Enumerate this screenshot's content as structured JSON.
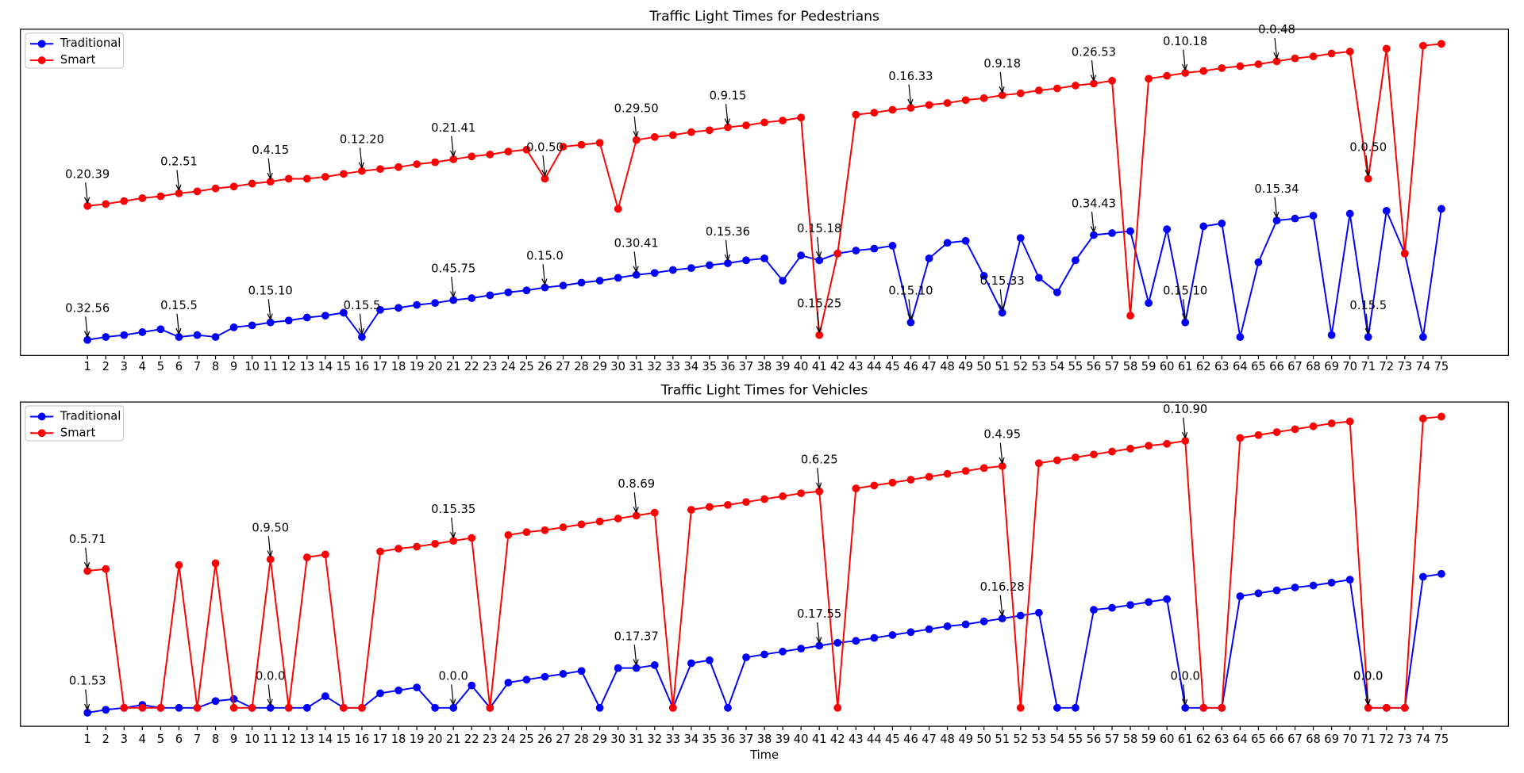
{
  "chart_data": [
    {
      "type": "line",
      "title": "Traffic Light Times for Pedestrians",
      "categories": [
        1,
        2,
        3,
        4,
        5,
        6,
        7,
        8,
        9,
        10,
        11,
        12,
        13,
        14,
        15,
        16,
        17,
        18,
        19,
        20,
        21,
        22,
        23,
        24,
        25,
        26,
        27,
        28,
        29,
        30,
        31,
        32,
        33,
        34,
        35,
        36,
        37,
        38,
        39,
        40,
        41,
        42,
        43,
        44,
        45,
        46,
        47,
        48,
        49,
        50,
        51,
        52,
        53,
        54,
        55,
        56,
        57,
        58,
        59,
        60,
        61,
        62,
        63,
        64,
        65,
        66,
        67,
        68,
        69,
        70,
        71,
        72,
        73,
        74,
        75
      ],
      "ylim": [
        0,
        336
      ],
      "legend": "upper left",
      "grid": false,
      "series": [
        {
          "name": "Traditional",
          "color": "#0000ff",
          "values": [
            16,
            19,
            21,
            24,
            27,
            19,
            21,
            19,
            29,
            31,
            34,
            36,
            39,
            41,
            44,
            19,
            47,
            49,
            52,
            54,
            57,
            59,
            62,
            65,
            67,
            70,
            72,
            75,
            77,
            80,
            83,
            85,
            88,
            90,
            93,
            95,
            98,
            100,
            77,
            103,
            98,
            105,
            108,
            110,
            113,
            34,
            100,
            116,
            118,
            82,
            44,
            121,
            80,
            65,
            98,
            124,
            126,
            128,
            54,
            130,
            34,
            133,
            136,
            19,
            96,
            139,
            141,
            144,
            21,
            146,
            19,
            149,
            105,
            19,
            151
          ],
          "annotations": [
            "0.32.56",
            null,
            null,
            null,
            null,
            "0.15.5",
            null,
            null,
            null,
            null,
            "0.15.10",
            null,
            null,
            null,
            null,
            "0.15.5",
            null,
            null,
            null,
            null,
            "0.45.75",
            null,
            null,
            null,
            null,
            "0.15.0",
            null,
            null,
            null,
            null,
            "0.30.41",
            null,
            null,
            null,
            null,
            "0.15.36",
            null,
            null,
            null,
            null,
            "0.15.18",
            null,
            null,
            null,
            null,
            "0.15.10",
            null,
            null,
            null,
            null,
            "0.15.33",
            null,
            null,
            null,
            null,
            "0.34.43",
            null,
            null,
            null,
            null,
            "0.15.10",
            null,
            null,
            null,
            null,
            "0.15.34",
            null,
            null,
            null,
            null,
            "0.15.5",
            null,
            null,
            null,
            null
          ]
        },
        {
          "name": "Smart",
          "color": "#ff0000",
          "values": [
            154,
            156,
            159,
            162,
            164,
            167,
            169,
            172,
            174,
            177,
            179,
            182,
            182,
            184,
            187,
            190,
            192,
            194,
            197,
            199,
            202,
            205,
            207,
            210,
            212,
            182,
            215,
            217,
            219,
            151,
            222,
            225,
            227,
            230,
            232,
            235,
            237,
            240,
            242,
            245,
            21,
            105,
            248,
            250,
            253,
            255,
            258,
            260,
            263,
            265,
            268,
            270,
            273,
            275,
            278,
            280,
            283,
            41,
            285,
            288,
            291,
            293,
            296,
            298,
            300,
            303,
            306,
            308,
            311,
            313,
            182,
            316,
            105,
            319,
            321
          ],
          "annotations": [
            "0.20.39",
            null,
            null,
            null,
            null,
            "0.2.51",
            null,
            null,
            null,
            null,
            "0.4.15",
            null,
            null,
            null,
            null,
            "0.12.20",
            null,
            null,
            null,
            null,
            "0.21.41",
            null,
            null,
            null,
            null,
            "0.0.50",
            null,
            null,
            null,
            null,
            "0.29.50",
            null,
            null,
            null,
            null,
            "0.9.15",
            null,
            null,
            null,
            null,
            "0.15.25",
            null,
            null,
            null,
            null,
            "0.16.33",
            null,
            null,
            null,
            null,
            "0.9.18",
            null,
            null,
            null,
            null,
            "0.26.53",
            null,
            null,
            null,
            null,
            "0.10.18",
            null,
            null,
            null,
            null,
            "0.0.48",
            null,
            null,
            null,
            null,
            "0.0.50",
            null,
            null,
            null,
            null
          ]
        }
      ]
    },
    {
      "type": "line",
      "title": "Traffic Light Times for Vehicles",
      "x_label": "Time",
      "categories": [
        1,
        2,
        3,
        4,
        5,
        6,
        7,
        8,
        9,
        10,
        11,
        12,
        13,
        14,
        15,
        16,
        17,
        18,
        19,
        20,
        21,
        22,
        23,
        24,
        25,
        26,
        27,
        28,
        29,
        30,
        31,
        32,
        33,
        34,
        35,
        36,
        37,
        38,
        39,
        40,
        41,
        42,
        43,
        44,
        45,
        46,
        47,
        48,
        49,
        50,
        51,
        52,
        53,
        54,
        55,
        56,
        57,
        58,
        59,
        60,
        61,
        62,
        63,
        64,
        65,
        66,
        67,
        68,
        69,
        70,
        71,
        72,
        73,
        74,
        75
      ],
      "ylim": [
        0,
        334
      ],
      "legend": "upper left",
      "grid": false,
      "series": [
        {
          "name": "Traditional",
          "color": "#0000ff",
          "values": [
            14,
            17,
            19,
            22,
            19,
            19,
            19,
            26,
            28,
            19,
            19,
            19,
            19,
            31,
            19,
            19,
            34,
            37,
            40,
            19,
            19,
            42,
            19,
            45,
            48,
            51,
            54,
            57,
            19,
            60,
            60,
            63,
            19,
            65,
            68,
            19,
            71,
            74,
            77,
            80,
            83,
            86,
            88,
            91,
            94,
            97,
            100,
            103,
            105,
            108,
            111,
            114,
            117,
            19,
            19,
            120,
            122,
            125,
            128,
            131,
            19,
            19,
            19,
            134,
            137,
            140,
            143,
            145,
            148,
            151,
            19,
            19,
            19,
            154,
            157
          ],
          "annotations": [
            "0.1.53",
            null,
            null,
            null,
            null,
            null,
            null,
            null,
            null,
            null,
            "0.0.0",
            null,
            null,
            null,
            null,
            null,
            null,
            null,
            null,
            null,
            "0.0.0",
            null,
            null,
            null,
            null,
            null,
            null,
            null,
            null,
            null,
            "0.17.37",
            null,
            null,
            null,
            null,
            null,
            null,
            null,
            null,
            null,
            "0.17.55",
            null,
            null,
            null,
            null,
            null,
            null,
            null,
            null,
            null,
            "0.16.28",
            null,
            null,
            null,
            null,
            null,
            null,
            null,
            null,
            null,
            "0.0.0",
            null,
            null,
            null,
            null,
            null,
            null,
            null,
            null,
            null,
            "0.0.0",
            null,
            null,
            null,
            null
          ]
        },
        {
          "name": "Smart",
          "color": "#ff0000",
          "values": [
            160,
            162,
            19,
            19,
            19,
            166,
            19,
            168,
            19,
            19,
            172,
            19,
            174,
            177,
            19,
            19,
            180,
            183,
            185,
            188,
            191,
            194,
            19,
            197,
            200,
            202,
            205,
            208,
            211,
            214,
            217,
            220,
            19,
            223,
            226,
            228,
            231,
            234,
            237,
            240,
            242,
            19,
            245,
            248,
            251,
            254,
            257,
            260,
            263,
            266,
            268,
            19,
            271,
            274,
            277,
            280,
            283,
            286,
            289,
            291,
            294,
            19,
            19,
            297,
            300,
            303,
            306,
            309,
            312,
            314,
            19,
            19,
            19,
            317,
            319
          ],
          "annotations": [
            "0.5.71",
            null,
            null,
            null,
            null,
            null,
            null,
            null,
            null,
            null,
            "0.9.50",
            null,
            null,
            null,
            null,
            null,
            null,
            null,
            null,
            null,
            "0.15.35",
            null,
            null,
            null,
            null,
            null,
            null,
            null,
            null,
            null,
            "0.8.69",
            null,
            null,
            null,
            null,
            null,
            null,
            null,
            null,
            null,
            "0.6.25",
            null,
            null,
            null,
            null,
            null,
            null,
            null,
            null,
            null,
            "0.4.95",
            null,
            null,
            null,
            null,
            null,
            null,
            null,
            null,
            null,
            "0.10.90",
            null,
            null,
            null,
            null,
            null,
            null,
            null,
            null,
            null,
            "0.0.0",
            null,
            null,
            null,
            null
          ]
        }
      ]
    }
  ]
}
